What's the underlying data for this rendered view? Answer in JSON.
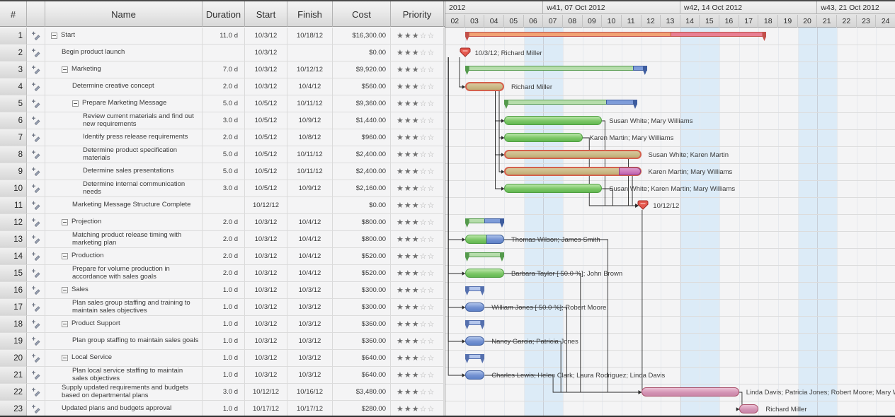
{
  "colors": {
    "weekend_band": "#dcebf7",
    "summary_red": "#f1a274",
    "summary_red_tail": "#e87f93",
    "summary_red_border": "#c2504a",
    "summary_green": "#b6ddab",
    "summary_green_border": "#549a4c",
    "summary_blue": "#b4c6ec",
    "summary_blue_border": "#5570ae",
    "task_green": "#7cc767",
    "task_green_border": "#4e9e41",
    "task_blue": "#7492d2",
    "task_blue_border": "#3d5c9e",
    "task_red_fill": "#bfac75",
    "task_red_border": "#d4604c",
    "task_pink": "#d392b3",
    "task_pink_border": "#a84e68",
    "milestone": "#e4584e",
    "milestone_border": "#9e2a25",
    "connector": "#2a2a2a"
  },
  "table": {
    "columns": [
      {
        "key": "num",
        "label": "#"
      },
      {
        "key": "icon",
        "label": ""
      },
      {
        "key": "name",
        "label": "Name"
      },
      {
        "key": "duration",
        "label": "Duration"
      },
      {
        "key": "start",
        "label": "Start"
      },
      {
        "key": "finish",
        "label": "Finish"
      },
      {
        "key": "cost",
        "label": "Cost"
      },
      {
        "key": "priority",
        "label": "Priority"
      }
    ],
    "priority_scale": 5,
    "rows": [
      {
        "id": 1,
        "name": "Start",
        "level": 0,
        "group": true,
        "duration": "11.0 d",
        "start": "10/3/12",
        "finish": "10/18/12",
        "cost": "$16,300.00",
        "priority": 3
      },
      {
        "id": 2,
        "name": "Begin product launch",
        "level": 1,
        "group": false,
        "duration": "",
        "start": "10/3/12",
        "finish": "",
        "cost": "$0.00",
        "priority": 3
      },
      {
        "id": 3,
        "name": "Marketing",
        "level": 1,
        "group": true,
        "duration": "7.0 d",
        "start": "10/3/12",
        "finish": "10/12/12",
        "cost": "$9,920.00",
        "priority": 3
      },
      {
        "id": 4,
        "name": "Determine creative concept",
        "level": 2,
        "group": false,
        "duration": "2.0 d",
        "start": "10/3/12",
        "finish": "10/4/12",
        "cost": "$560.00",
        "priority": 3
      },
      {
        "id": 5,
        "name": "Prepare Marketing Message",
        "level": 2,
        "group": true,
        "duration": "5.0 d",
        "start": "10/5/12",
        "finish": "10/11/12",
        "cost": "$9,360.00",
        "priority": 3
      },
      {
        "id": 6,
        "name": "Review current materials and find out new requirements",
        "level": 3,
        "group": false,
        "duration": "3.0 d",
        "start": "10/5/12",
        "finish": "10/9/12",
        "cost": "$1,440.00",
        "priority": 3
      },
      {
        "id": 7,
        "name": "Identify press release requirements",
        "level": 3,
        "group": false,
        "duration": "2.0 d",
        "start": "10/5/12",
        "finish": "10/8/12",
        "cost": "$960.00",
        "priority": 3
      },
      {
        "id": 8,
        "name": "Determine product specification materials",
        "level": 3,
        "group": false,
        "duration": "5.0 d",
        "start": "10/5/12",
        "finish": "10/11/12",
        "cost": "$2,400.00",
        "priority": 3
      },
      {
        "id": 9,
        "name": "Determine sales presentations",
        "level": 3,
        "group": false,
        "duration": "5.0 d",
        "start": "10/5/12",
        "finish": "10/11/12",
        "cost": "$2,400.00",
        "priority": 3
      },
      {
        "id": 10,
        "name": "Determine internal communication needs",
        "level": 3,
        "group": false,
        "duration": "3.0 d",
        "start": "10/5/12",
        "finish": "10/9/12",
        "cost": "$2,160.00",
        "priority": 3
      },
      {
        "id": 11,
        "name": "Marketing Message Structure Complete",
        "level": 2,
        "group": false,
        "duration": "",
        "start": "10/12/12",
        "finish": "",
        "cost": "$0.00",
        "priority": 3
      },
      {
        "id": 12,
        "name": "Projection",
        "level": 1,
        "group": true,
        "duration": "2.0 d",
        "start": "10/3/12",
        "finish": "10/4/12",
        "cost": "$800.00",
        "priority": 3
      },
      {
        "id": 13,
        "name": "Matching product release timing with marketing plan",
        "level": 2,
        "group": false,
        "duration": "2.0 d",
        "start": "10/3/12",
        "finish": "10/4/12",
        "cost": "$800.00",
        "priority": 3
      },
      {
        "id": 14,
        "name": "Production",
        "level": 1,
        "group": true,
        "duration": "2.0 d",
        "start": "10/3/12",
        "finish": "10/4/12",
        "cost": "$520.00",
        "priority": 3
      },
      {
        "id": 15,
        "name": "Prepare for volume production in accordance with sales goals",
        "level": 2,
        "group": false,
        "duration": "2.0 d",
        "start": "10/3/12",
        "finish": "10/4/12",
        "cost": "$520.00",
        "priority": 3
      },
      {
        "id": 16,
        "name": "Sales",
        "level": 1,
        "group": true,
        "duration": "1.0 d",
        "start": "10/3/12",
        "finish": "10/3/12",
        "cost": "$300.00",
        "priority": 3
      },
      {
        "id": 17,
        "name": "Plan sales group staffing and training to maintain sales objectives",
        "level": 2,
        "group": false,
        "duration": "1.0 d",
        "start": "10/3/12",
        "finish": "10/3/12",
        "cost": "$300.00",
        "priority": 3
      },
      {
        "id": 18,
        "name": "Product Support",
        "level": 1,
        "group": true,
        "duration": "1.0 d",
        "start": "10/3/12",
        "finish": "10/3/12",
        "cost": "$360.00",
        "priority": 3
      },
      {
        "id": 19,
        "name": "Plan group staffing to maintain sales goals",
        "level": 2,
        "group": false,
        "duration": "1.0 d",
        "start": "10/3/12",
        "finish": "10/3/12",
        "cost": "$360.00",
        "priority": 3
      },
      {
        "id": 20,
        "name": "Local Service",
        "level": 1,
        "group": true,
        "duration": "1.0 d",
        "start": "10/3/12",
        "finish": "10/3/12",
        "cost": "$640.00",
        "priority": 3
      },
      {
        "id": 21,
        "name": "Plan local service staffing to maintain sales objectives",
        "level": 2,
        "group": false,
        "duration": "1.0 d",
        "start": "10/3/12",
        "finish": "10/3/12",
        "cost": "$640.00",
        "priority": 3
      },
      {
        "id": 22,
        "name": "Supply updated requirements and budgets based on departmental plans",
        "level": 1,
        "group": false,
        "duration": "3.0 d",
        "start": "10/12/12",
        "finish": "10/16/12",
        "cost": "$3,480.00",
        "priority": 3
      },
      {
        "id": 23,
        "name": "Updated plans and budgets approval",
        "level": 1,
        "group": false,
        "duration": "1.0 d",
        "start": "10/17/12",
        "finish": "10/17/12",
        "cost": "$280.00",
        "priority": 3
      }
    ]
  },
  "chart_data": {
    "type": "gantt",
    "timescale": {
      "year_row_and_weeks": [
        {
          "label": "2012",
          "span": 5
        },
        {
          "label": "w41, 07 Oct 2012",
          "span": 7
        },
        {
          "label": "w42, 14 Oct 2012",
          "span": 7
        },
        {
          "label": "w43, 21 Oct 2012",
          "span": 4
        }
      ],
      "days": [
        "02",
        "03",
        "04",
        "05",
        "06",
        "07",
        "08",
        "09",
        "10",
        "11",
        "12",
        "13",
        "14",
        "15",
        "16",
        "17",
        "18",
        "19",
        "20",
        "21",
        "22",
        "23",
        "24"
      ],
      "weekend_day_indices": [
        4,
        5,
        11,
        12,
        18,
        19
      ]
    },
    "bars": [
      {
        "row": 1,
        "kind": "summary-red",
        "s": 1,
        "e": 16.4,
        "split": 11.5
      },
      {
        "row": 2,
        "kind": "milestone",
        "at": 1,
        "label": "10/3/12; Richard Miller"
      },
      {
        "row": 3,
        "kind": "summary-green",
        "s": 1,
        "e": 10.3,
        "tail": 0.7
      },
      {
        "row": 4,
        "kind": "task-red",
        "s": 1,
        "e": 3,
        "label": "Richard Miller"
      },
      {
        "row": 5,
        "kind": "summary-green",
        "s": 3,
        "e": 9.8,
        "tail": 1.6
      },
      {
        "row": 6,
        "kind": "task-green",
        "s": 3,
        "e": 8,
        "label": "Susan White; Mary Williams"
      },
      {
        "row": 7,
        "kind": "task-green",
        "s": 3,
        "e": 7,
        "label": "Karen Martin; Mary Williams"
      },
      {
        "row": 8,
        "kind": "task-red",
        "s": 3,
        "e": 10,
        "label": "Susan White; Karen Martin"
      },
      {
        "row": 9,
        "kind": "task-red",
        "s": 3,
        "e": 10,
        "tail": 1.1,
        "label": "Karen Martin; Mary Williams"
      },
      {
        "row": 10,
        "kind": "task-green",
        "s": 3,
        "e": 8,
        "label": "Susan White; Karen Martin; Mary Williams"
      },
      {
        "row": 11,
        "kind": "milestone",
        "at": 10.1,
        "label": "10/12/12"
      },
      {
        "row": 12,
        "kind": "summary-green",
        "s": 1,
        "e": 3,
        "tail": 1.0
      },
      {
        "row": 13,
        "kind": "task-green",
        "s": 1,
        "e": 3,
        "tail": 0.9,
        "label": "Thomas Wilson; James Smith"
      },
      {
        "row": 14,
        "kind": "summary-green",
        "s": 1,
        "e": 3
      },
      {
        "row": 15,
        "kind": "task-green",
        "s": 1,
        "e": 3,
        "label": "Barbara Taylor [ 50.0 %]; John Brown"
      },
      {
        "row": 16,
        "kind": "summary-blue",
        "s": 1,
        "e": 2
      },
      {
        "row": 17,
        "kind": "task-blue",
        "s": 1,
        "e": 2,
        "label": "William Jones [ 50.0 %]; Robert Moore"
      },
      {
        "row": 18,
        "kind": "summary-blue",
        "s": 1,
        "e": 2
      },
      {
        "row": 19,
        "kind": "task-blue",
        "s": 1,
        "e": 2,
        "label": "Nancy Garcia; Patricia Jones"
      },
      {
        "row": 20,
        "kind": "summary-blue",
        "s": 1,
        "e": 2
      },
      {
        "row": 21,
        "kind": "task-blue",
        "s": 1,
        "e": 2,
        "label": "Charles Lewis; Helen Clark; Laura Rodriguez; Linda Davis"
      },
      {
        "row": 22,
        "kind": "task-pink",
        "s": 10,
        "e": 15,
        "label": "Linda Davis; Patricia Jones; Robert Moore; Mary W"
      },
      {
        "row": 23,
        "kind": "task-pink",
        "s": 15,
        "e": 16,
        "label": "Richard Miller"
      }
    ],
    "links": [
      {
        "from": 2,
        "to": 4,
        "vx": 0.72
      },
      {
        "from": 2,
        "to": 13,
        "vx": 0.15
      },
      {
        "from": 2,
        "to": 15,
        "vx": 0.15
      },
      {
        "from": 2,
        "to": 17,
        "vx": 0.15
      },
      {
        "from": 2,
        "to": 19,
        "vx": 0.15
      },
      {
        "from": 2,
        "to": 21,
        "vx": 0.15
      },
      {
        "from": 4,
        "to": 6,
        "vx": 2.55
      },
      {
        "from": 4,
        "to": 7,
        "vx": 2.75
      },
      {
        "from": 4,
        "to": 8,
        "vx": 2.55
      },
      {
        "from": 4,
        "to": 9,
        "vx": 2.75
      },
      {
        "from": 4,
        "to": 10,
        "vx": 2.55
      },
      {
        "from": 6,
        "to": 11,
        "vx": 8.15
      },
      {
        "from": 7,
        "to": 11,
        "vx": 7.35
      },
      {
        "from": 8,
        "to": 11,
        "vx": 9.35
      },
      {
        "from": 9,
        "to": 11,
        "vx": 9.55
      },
      {
        "from": 10,
        "to": 11,
        "vx": 8.55
      },
      {
        "from": 11,
        "to": 22,
        "vx": 10.05
      },
      {
        "from": 13,
        "to": 22,
        "vx": 8.3
      },
      {
        "from": 15,
        "to": 22,
        "vx": 6.9
      },
      {
        "from": 17,
        "to": 22,
        "vx": 6.2
      },
      {
        "from": 19,
        "to": 22,
        "vx": 5.9
      },
      {
        "from": 21,
        "to": 22,
        "vx": 5.5
      },
      {
        "from": 22,
        "to": 23,
        "vx": 15.15
      }
    ]
  }
}
